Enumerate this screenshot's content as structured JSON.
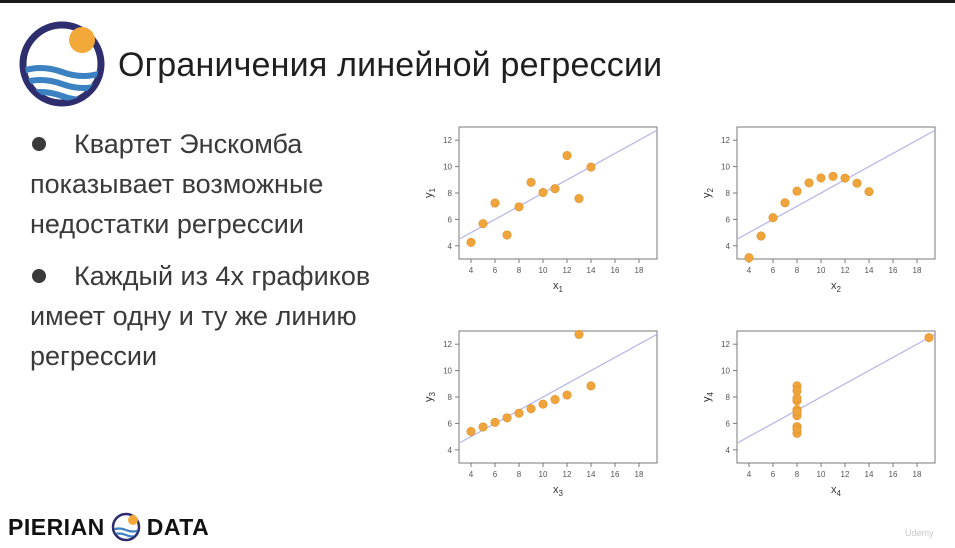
{
  "slide": {
    "title": "Ограничения линейной регрессии",
    "bullets": [
      "Квартет Энскомба показывает возможные недостатки регрессии",
      "Каждый из 4х графиков имеет одну и ту же линию регрессии"
    ],
    "brand_left": "PIERIAN",
    "brand_right": "DATA",
    "watermark": "Udemy"
  },
  "colors": {
    "point": "#f0a43c",
    "point_stroke": "#e08e24",
    "regression_line": "#b9b9e8",
    "logo_ring": "#2e2e6e",
    "logo_sun": "#f3a83a",
    "logo_wave": "#3c82c2"
  },
  "chart_data": [
    {
      "type": "scatter",
      "xlabel": "x",
      "xsub": "1",
      "ylabel": "y",
      "ysub": "1",
      "xlim": [
        3,
        19.5
      ],
      "ylim": [
        3,
        13
      ],
      "xticks": [
        4,
        6,
        8,
        10,
        12,
        14,
        16,
        18
      ],
      "yticks": [
        4,
        6,
        8,
        10,
        12
      ],
      "line": {
        "intercept": 3,
        "slope": 0.5
      },
      "points": [
        [
          10,
          8.04
        ],
        [
          8,
          6.95
        ],
        [
          13,
          7.58
        ],
        [
          9,
          8.81
        ],
        [
          11,
          8.33
        ],
        [
          14,
          9.96
        ],
        [
          6,
          7.24
        ],
        [
          4,
          4.26
        ],
        [
          12,
          10.84
        ],
        [
          7,
          4.82
        ],
        [
          5,
          5.68
        ]
      ]
    },
    {
      "type": "scatter",
      "xlabel": "x",
      "xsub": "2",
      "ylabel": "y",
      "ysub": "2",
      "xlim": [
        3,
        19.5
      ],
      "ylim": [
        3,
        13
      ],
      "xticks": [
        4,
        6,
        8,
        10,
        12,
        14,
        16,
        18
      ],
      "yticks": [
        4,
        6,
        8,
        10,
        12
      ],
      "line": {
        "intercept": 3,
        "slope": 0.5
      },
      "points": [
        [
          10,
          9.14
        ],
        [
          8,
          8.14
        ],
        [
          13,
          8.74
        ],
        [
          9,
          8.77
        ],
        [
          11,
          9.26
        ],
        [
          14,
          8.1
        ],
        [
          6,
          6.13
        ],
        [
          4,
          3.1
        ],
        [
          12,
          9.13
        ],
        [
          7,
          7.26
        ],
        [
          5,
          4.74
        ]
      ]
    },
    {
      "type": "scatter",
      "xlabel": "x",
      "xsub": "3",
      "ylabel": "y",
      "ysub": "3",
      "xlim": [
        3,
        19.5
      ],
      "ylim": [
        3,
        13
      ],
      "xticks": [
        4,
        6,
        8,
        10,
        12,
        14,
        16,
        18
      ],
      "yticks": [
        4,
        6,
        8,
        10,
        12
      ],
      "line": {
        "intercept": 3,
        "slope": 0.5
      },
      "points": [
        [
          10,
          7.46
        ],
        [
          8,
          6.77
        ],
        [
          13,
          12.74
        ],
        [
          9,
          7.11
        ],
        [
          11,
          7.81
        ],
        [
          14,
          8.84
        ],
        [
          6,
          6.08
        ],
        [
          4,
          5.39
        ],
        [
          12,
          8.15
        ],
        [
          7,
          6.42
        ],
        [
          5,
          5.73
        ]
      ]
    },
    {
      "type": "scatter",
      "xlabel": "x",
      "xsub": "4",
      "ylabel": "y",
      "ysub": "4",
      "xlim": [
        3,
        19.5
      ],
      "ylim": [
        3,
        13
      ],
      "xticks": [
        4,
        6,
        8,
        10,
        12,
        14,
        16,
        18
      ],
      "yticks": [
        4,
        6,
        8,
        10,
        12
      ],
      "line": {
        "intercept": 3,
        "slope": 0.5
      },
      "points": [
        [
          8,
          6.58
        ],
        [
          8,
          5.76
        ],
        [
          8,
          7.71
        ],
        [
          8,
          8.84
        ],
        [
          8,
          8.47
        ],
        [
          8,
          7.04
        ],
        [
          8,
          5.25
        ],
        [
          19,
          12.5
        ],
        [
          8,
          5.56
        ],
        [
          8,
          7.91
        ],
        [
          8,
          6.89
        ]
      ]
    }
  ]
}
